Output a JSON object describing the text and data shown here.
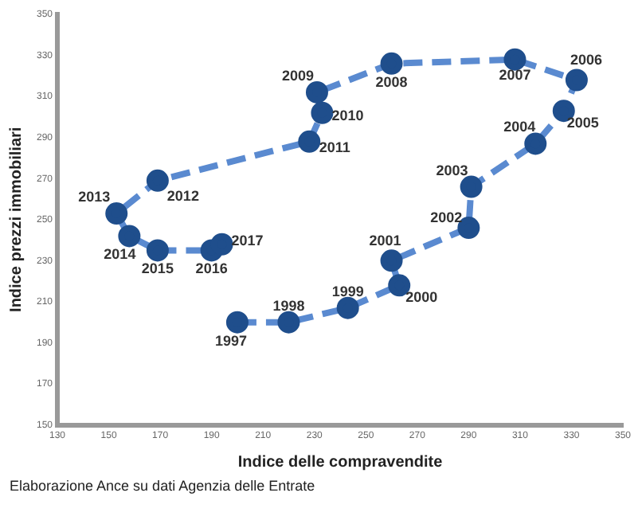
{
  "chart_data": {
    "type": "line",
    "xlabel": "Indice delle compravendite",
    "ylabel": "Indice prezzi immobiliari",
    "x": [
      200,
      220,
      243,
      263,
      260,
      290,
      291,
      316,
      327,
      332,
      308,
      260,
      231,
      233,
      228,
      169,
      153,
      158,
      169,
      190,
      194
    ],
    "series": [
      {
        "color": "#1f4e8c",
        "values": [
          200,
          200,
          207,
          218,
          230,
          246,
          266,
          287,
          303,
          318,
          328,
          326,
          312,
          302,
          288,
          269,
          253,
          242,
          235,
          235,
          238
        ]
      }
    ],
    "xlim": [
      130,
      350
    ],
    "xticks": [
      130,
      150,
      170,
      190,
      210,
      230,
      250,
      270,
      290,
      310,
      330,
      350
    ],
    "ylim": [
      150,
      350
    ],
    "yticks": [
      150,
      170,
      190,
      210,
      230,
      250,
      270,
      290,
      310,
      330,
      350
    ],
    "grid": false,
    "legend": false,
    "marker": "circle",
    "line_style": "dashed",
    "annotations": [
      {
        "text": "1997",
        "x": 200,
        "y": 200
      },
      {
        "text": "1998",
        "x": 220,
        "y": 200
      },
      {
        "text": "1999",
        "x": 243,
        "y": 207
      },
      {
        "text": "2000",
        "x": 263,
        "y": 218
      },
      {
        "text": "2001",
        "x": 260,
        "y": 230
      },
      {
        "text": "2002",
        "x": 290,
        "y": 246
      },
      {
        "text": "2003",
        "x": 291,
        "y": 266
      },
      {
        "text": "2004",
        "x": 316,
        "y": 287
      },
      {
        "text": "2005",
        "x": 327,
        "y": 303
      },
      {
        "text": "2006",
        "x": 332,
        "y": 318
      },
      {
        "text": "2007",
        "x": 308,
        "y": 328
      },
      {
        "text": "2008",
        "x": 260,
        "y": 326
      },
      {
        "text": "2009",
        "x": 231,
        "y": 312
      },
      {
        "text": "2010",
        "x": 233,
        "y": 302
      },
      {
        "text": "2011",
        "x": 228,
        "y": 288
      },
      {
        "text": "2012",
        "x": 169,
        "y": 269
      },
      {
        "text": "2013",
        "x": 153,
        "y": 253
      },
      {
        "text": "2014",
        "x": 158,
        "y": 242
      },
      {
        "text": "2015",
        "x": 169,
        "y": 235
      },
      {
        "text": "2016",
        "x": 190,
        "y": 235
      },
      {
        "text": "2017",
        "x": 194,
        "y": 238
      },
      "Elaborazione Ance su dati Agenzia delle Entrate"
    ]
  }
}
